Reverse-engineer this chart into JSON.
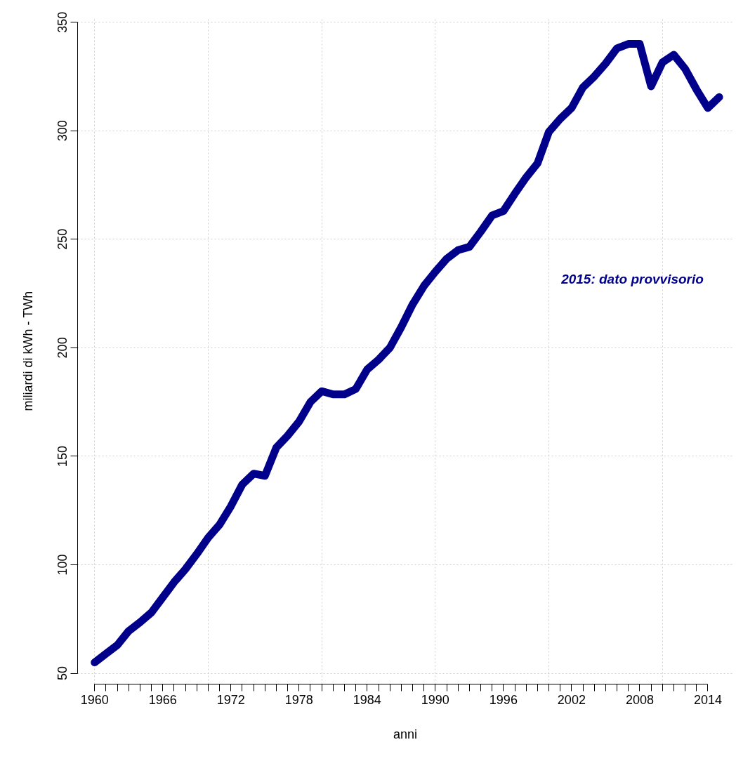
{
  "chart_data": {
    "type": "line",
    "xlabel": "anni",
    "ylabel": "miliardi di kWh - TWh",
    "x": [
      1960,
      1961,
      1962,
      1963,
      1964,
      1965,
      1966,
      1967,
      1968,
      1969,
      1970,
      1971,
      1972,
      1973,
      1974,
      1975,
      1976,
      1977,
      1978,
      1979,
      1980,
      1981,
      1982,
      1983,
      1984,
      1985,
      1986,
      1987,
      1988,
      1989,
      1990,
      1991,
      1992,
      1993,
      1994,
      1995,
      1996,
      1997,
      1998,
      1999,
      2000,
      2001,
      2002,
      2003,
      2004,
      2005,
      2006,
      2007,
      2008,
      2009,
      2010,
      2011,
      2012,
      2013,
      2014,
      2015
    ],
    "series": [
      {
        "color": "#00008b",
        "values": [
          55,
          59,
          63,
          69.5,
          73.5,
          78,
          85,
          92,
          98,
          105,
          112.5,
          118.5,
          127,
          137,
          142,
          141,
          154,
          159.5,
          166,
          175,
          180,
          178.5,
          178.5,
          181,
          190,
          194.5,
          200,
          209.5,
          220,
          228.5,
          235,
          241,
          245,
          246.5,
          253.5,
          261,
          263,
          271,
          278.5,
          285,
          299.5,
          305.5,
          310.5,
          320,
          325,
          331,
          338,
          340,
          340,
          320.5,
          331.5,
          335,
          328.5,
          319,
          310.5,
          315.5
        ]
      }
    ],
    "xlim": [
      1958.5,
      2016.2
    ],
    "ylim": [
      45,
      352
    ],
    "xticks": [
      1960,
      {
        "value": 1961,
        "label": null
      },
      {
        "value": 1962,
        "label": null
      },
      {
        "value": 1963,
        "label": null
      },
      {
        "value": 1964,
        "label": null
      },
      {
        "value": 1965,
        "label": null
      },
      1966,
      {
        "value": 1967,
        "label": null
      },
      {
        "value": 1968,
        "label": null
      },
      {
        "value": 1969,
        "label": null
      },
      {
        "value": 1970,
        "label": null
      },
      {
        "value": 1971,
        "label": null
      },
      1972,
      {
        "value": 1973,
        "label": null
      },
      {
        "value": 1974,
        "label": null
      },
      {
        "value": 1975,
        "label": null
      },
      {
        "value": 1976,
        "label": null
      },
      {
        "value": 1977,
        "label": null
      },
      1978,
      {
        "value": 1979,
        "label": null
      },
      {
        "value": 1980,
        "label": null
      },
      {
        "value": 1981,
        "label": null
      },
      {
        "value": 1982,
        "label": null
      },
      {
        "value": 1983,
        "label": null
      },
      1984,
      {
        "value": 1985,
        "label": null
      },
      {
        "value": 1986,
        "label": null
      },
      {
        "value": 1987,
        "label": null
      },
      {
        "value": 1988,
        "label": null
      },
      {
        "value": 1989,
        "label": null
      },
      1990,
      {
        "value": 1991,
        "label": null
      },
      {
        "value": 1992,
        "label": null
      },
      {
        "value": 1993,
        "label": null
      },
      {
        "value": 1994,
        "label": null
      },
      {
        "value": 1995,
        "label": null
      },
      1996,
      {
        "value": 1997,
        "label": null
      },
      {
        "value": 1998,
        "label": null
      },
      {
        "value": 1999,
        "label": null
      },
      {
        "value": 2000,
        "label": null
      },
      {
        "value": 2001,
        "label": null
      },
      2002,
      {
        "value": 2003,
        "label": null
      },
      {
        "value": 2004,
        "label": null
      },
      {
        "value": 2005,
        "label": null
      },
      {
        "value": 2006,
        "label": null
      },
      {
        "value": 2007,
        "label": null
      },
      2008,
      {
        "value": 2009,
        "label": null
      },
      {
        "value": 2010,
        "label": null
      },
      {
        "value": 2011,
        "label": null
      },
      {
        "value": 2012,
        "label": null
      },
      {
        "value": 2013,
        "label": null
      },
      2014
    ],
    "yticks": [
      50,
      100,
      150,
      200,
      250,
      300,
      350
    ],
    "grid": true,
    "line_style": "solid",
    "annotations": [
      "2015: dato provvisorio"
    ]
  }
}
